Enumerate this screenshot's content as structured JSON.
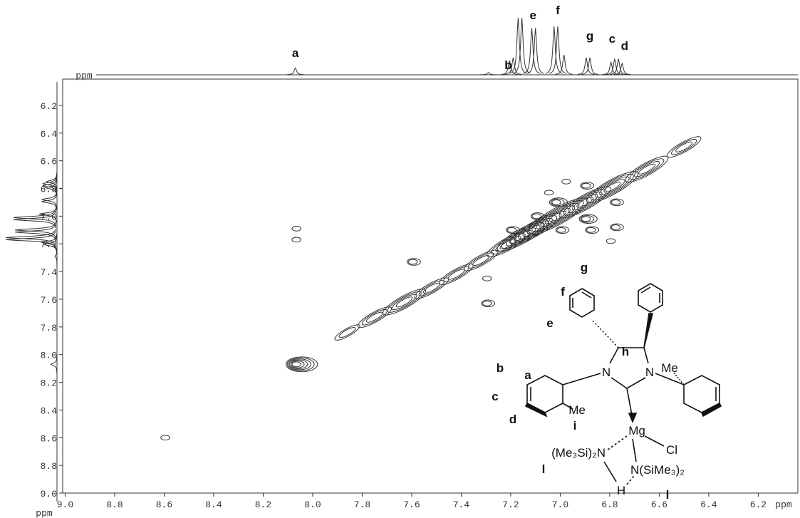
{
  "chart_data": {
    "type": "contour",
    "x_label": "ppm",
    "y_label": "ppm",
    "top_label": "ppm",
    "xlim": [
      9.01,
      6.04
    ],
    "ylim": [
      6.01,
      9.0
    ],
    "xticks": [
      {
        "value": 9,
        "label": "9.0"
      },
      8.8,
      8.6,
      8.4,
      8.2,
      {
        "value": 8,
        "label": "8.0"
      },
      7.8,
      7.6,
      7.4,
      7.2,
      {
        "value": 7,
        "label": "7.0"
      },
      6.8,
      6.6,
      6.4,
      6.2
    ],
    "yticks": [
      6.2,
      6.4,
      6.6,
      6.8,
      {
        "value": 7,
        "label": "7.0"
      },
      7.2,
      7.4,
      7.6,
      7.8,
      {
        "value": 8,
        "label": "8.0"
      },
      8.2,
      8.4,
      8.6,
      8.8,
      {
        "value": 9,
        "label": "9.0"
      }
    ],
    "color": "#333333",
    "projection": {
      "shifts": [
        8.07,
        7.29,
        7.205,
        7.19,
        7.17,
        7.155,
        7.115,
        7.1,
        7.025,
        7.01,
        6.985,
        6.895,
        6.88,
        6.795,
        6.78,
        6.765,
        6.75
      ],
      "intensities": [
        12,
        4,
        25,
        30,
        100,
        100,
        82,
        82,
        85,
        85,
        35,
        30,
        30,
        22,
        28,
        28,
        20
      ]
    },
    "peak_labels": {
      "labels": [
        "a",
        "b",
        "e",
        "f",
        "g",
        "c",
        "d"
      ],
      "shifts": [
        8.07,
        7.21,
        7.11,
        7.01,
        6.88,
        6.79,
        6.74
      ]
    },
    "diagonal_peaks": {
      "x": [
        7.86,
        7.75,
        7.63,
        7.52,
        7.42,
        7.32,
        7.21,
        7.15,
        7.1,
        7.01,
        6.9,
        6.79,
        6.65,
        6.5
      ],
      "y": [
        7.84,
        7.73,
        7.62,
        7.52,
        7.42,
        7.32,
        7.2,
        7.14,
        7.09,
        7.0,
        6.9,
        6.79,
        6.66,
        6.5
      ],
      "levels": [
        2,
        3,
        4,
        3,
        3,
        3,
        4,
        5,
        5,
        6,
        5,
        5,
        4,
        3
      ]
    },
    "cross_peaks": {
      "x": [
        8.07,
        8.07,
        8.07,
        8.6,
        7.6,
        7.3,
        7.3,
        7.02,
        6.9,
        7.1,
        7.0,
        6.78,
        6.9,
        6.88,
        6.78,
        6.8,
        6.98,
        7.05,
        7.2
      ],
      "y": [
        8.07,
        7.09,
        7.17,
        8.6,
        7.33,
        7.45,
        7.63,
        6.9,
        7.02,
        7.0,
        7.1,
        6.9,
        6.78,
        7.1,
        7.08,
        7.18,
        6.75,
        6.83,
        7.1
      ],
      "levels": [
        6,
        1,
        1,
        1,
        2,
        1,
        2,
        3,
        3,
        2,
        2,
        2,
        2,
        2,
        2,
        1,
        1,
        1,
        2
      ]
    }
  },
  "structure": {
    "labels": [
      "a",
      "b",
      "c",
      "d",
      "e",
      "f",
      "g",
      "h",
      "i",
      "l",
      "l",
      "Me",
      "Me",
      "N",
      "N",
      "Mg",
      "Cl",
      "(Me₃Si)₂N",
      "N(SiMe₃)₂",
      "H"
    ]
  }
}
